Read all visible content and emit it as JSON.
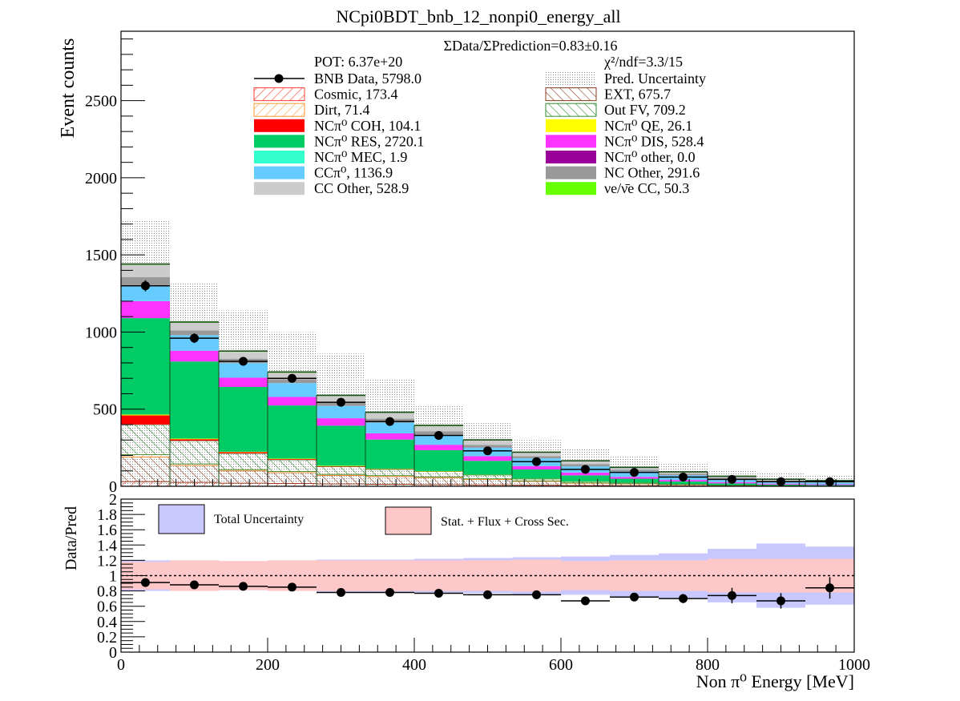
{
  "chart_data": [
    {
      "type": "bar",
      "stacked": true,
      "title": "NCpi0BDT_bnb_12_nonpi0_energy_all",
      "ylabel": "Event counts",
      "xlabel": "",
      "xlim": [
        0,
        1000
      ],
      "ylim": [
        0,
        2950
      ],
      "yticks": [
        "0",
        "500",
        "1000",
        "1500",
        "2000",
        "2500"
      ],
      "bin_edges": [
        0,
        66.67,
        133.33,
        200,
        266.67,
        333.33,
        400,
        466.67,
        533.33,
        600,
        666.67,
        733.33,
        800,
        866.67,
        933.33,
        1000
      ],
      "ratio_text": "ΣData/ΣPrediction=0.83±0.16",
      "pot_text": "POT: 6.37e+20",
      "chi2_text": "χ²/ndf=3.3/15",
      "series": [
        {
          "name": "Cosmic, 173.4",
          "color": "#ff3b30",
          "pattern": "hatch-red",
          "values": [
            30,
            25,
            20,
            18,
            15,
            13,
            11,
            9,
            7,
            5,
            4,
            3,
            2,
            2,
            1
          ]
        },
        {
          "name": "EXT, 675.7",
          "color": "#8b3a1a",
          "pattern": "hatch-brown",
          "values": [
            160,
            110,
            80,
            70,
            55,
            50,
            45,
            35,
            25,
            15,
            12,
            8,
            5,
            3,
            2
          ]
        },
        {
          "name": "Dirt, 71.4",
          "color": "#ff9933",
          "pattern": "hatch-orange",
          "values": [
            15,
            10,
            8,
            8,
            7,
            6,
            5,
            4,
            3,
            2,
            1,
            1,
            0,
            0,
            0
          ]
        },
        {
          "name": "Out FV, 709.2",
          "color": "#2e8b2e",
          "pattern": "hatch-green",
          "values": [
            195,
            150,
            105,
            75,
            50,
            40,
            35,
            25,
            12,
            8,
            6,
            4,
            2,
            1,
            0
          ]
        },
        {
          "name": "NCπ⁰ COH,  104.1",
          "color": "#ff0000",
          "values": [
            60,
            10,
            8,
            5,
            3,
            2,
            1,
            1,
            1,
            0,
            0,
            0,
            0,
            0,
            0
          ]
        },
        {
          "name": "NCπ⁰ QE,  26.1",
          "color": "#ffff00",
          "values": [
            5,
            4,
            3,
            3,
            3,
            2,
            2,
            1,
            1,
            1,
            1,
            0,
            0,
            0,
            0
          ]
        },
        {
          "name": "NCπ⁰ RES,  2720.1",
          "color": "#00cc66",
          "values": [
            625,
            500,
            420,
            345,
            260,
            190,
            135,
            90,
            60,
            40,
            25,
            15,
            10,
            5,
            5
          ]
        },
        {
          "name": "NCπ⁰ DIS,  528.4",
          "color": "#ff33ff",
          "values": [
            110,
            70,
            60,
            55,
            48,
            40,
            35,
            30,
            22,
            18,
            12,
            10,
            8,
            6,
            5
          ]
        },
        {
          "name": "NCπ⁰ MEC,  1.9",
          "color": "#33ffcc",
          "values": [
            1,
            1,
            0,
            0,
            0,
            0,
            0,
            0,
            0,
            0,
            0,
            0,
            0,
            0,
            0
          ]
        },
        {
          "name": "NCπ⁰ other,  0.0",
          "color": "#990099",
          "values": [
            0,
            0,
            0,
            0,
            0,
            0,
            0,
            0,
            0,
            0,
            0,
            0,
            0,
            0,
            0
          ]
        },
        {
          "name": "CCπ⁰, 1136.9",
          "color": "#66ccff",
          "values": [
            100,
            100,
            95,
            90,
            80,
            70,
            65,
            55,
            50,
            40,
            35,
            30,
            20,
            15,
            12
          ]
        },
        {
          "name": "NC Other, 291.6",
          "color": "#999999",
          "values": [
            55,
            30,
            28,
            25,
            25,
            25,
            22,
            18,
            15,
            15,
            12,
            10,
            8,
            6,
            5
          ]
        },
        {
          "name": "CC Other, 528.9",
          "color": "#cccccc",
          "values": [
            80,
            50,
            45,
            42,
            40,
            38,
            35,
            30,
            22,
            18,
            12,
            10,
            8,
            6,
            5
          ]
        },
        {
          "name": "νe/ν̄e CC, 50.3",
          "color": "#66ff00",
          "values": [
            5,
            5,
            5,
            5,
            4,
            4,
            4,
            3,
            3,
            3,
            3,
            3,
            2,
            2,
            2
          ]
        }
      ],
      "prediction_uncertainty": {
        "name": "Pred. Uncertainty",
        "upper": [
          1730,
          1320,
          1140,
          1000,
          860,
          700,
          530,
          410,
          300,
          240,
          200,
          145,
          110,
          85,
          75
        ]
      },
      "data": {
        "name": "BNB Data, 5798.0",
        "x": [
          33.3,
          100,
          166.7,
          233.3,
          300,
          366.7,
          433.3,
          500,
          566.7,
          633.3,
          700,
          766.7,
          833.3,
          900,
          966.7
        ],
        "y": [
          1300,
          960,
          810,
          700,
          545,
          420,
          330,
          230,
          160,
          110,
          90,
          60,
          45,
          30,
          30
        ],
        "yerr": [
          36,
          31,
          28,
          26,
          23,
          20,
          18,
          15,
          13,
          10,
          9,
          8,
          7,
          6,
          6
        ]
      },
      "legend_position": "top"
    },
    {
      "type": "scatter",
      "ylabel": "Data/Pred",
      "xlabel": "Non π⁰ Energy [MeV]",
      "xlim": [
        0,
        1000
      ],
      "ylim": [
        0,
        2
      ],
      "xticks": [
        "0",
        "200",
        "400",
        "600",
        "800",
        "1000"
      ],
      "yticks": [
        "0",
        "0.2",
        "0.4",
        "0.6",
        "0.8",
        "1",
        "1.2",
        "1.4",
        "1.6",
        "1.8",
        "2"
      ],
      "reference_line": 1,
      "bands": [
        {
          "name": "Total Uncertainty",
          "color": "#c8c8ff",
          "half_width": [
            0.2,
            0.2,
            0.19,
            0.2,
            0.21,
            0.21,
            0.22,
            0.23,
            0.24,
            0.25,
            0.27,
            0.29,
            0.35,
            0.42,
            0.38
          ]
        },
        {
          "name": "Stat. + Flux + Cross Sec.",
          "color": "#ffc8c8",
          "half_width": [
            0.18,
            0.2,
            0.19,
            0.2,
            0.2,
            0.2,
            0.2,
            0.2,
            0.21,
            0.19,
            0.2,
            0.2,
            0.22,
            0.22,
            0.22
          ]
        }
      ],
      "points": {
        "x": [
          33.3,
          100,
          166.7,
          233.3,
          300,
          366.7,
          433.3,
          500,
          566.7,
          633.3,
          700,
          766.7,
          833.3,
          900,
          966.7
        ],
        "y": [
          0.91,
          0.88,
          0.86,
          0.85,
          0.78,
          0.78,
          0.77,
          0.75,
          0.75,
          0.67,
          0.72,
          0.7,
          0.74,
          0.67,
          0.84
        ],
        "yerr": [
          0.03,
          0.02,
          0.02,
          0.02,
          0.02,
          0.02,
          0.02,
          0.02,
          0.03,
          0.02,
          0.05,
          0.06,
          0.1,
          0.1,
          0.14
        ]
      },
      "legend_position": "top"
    }
  ]
}
